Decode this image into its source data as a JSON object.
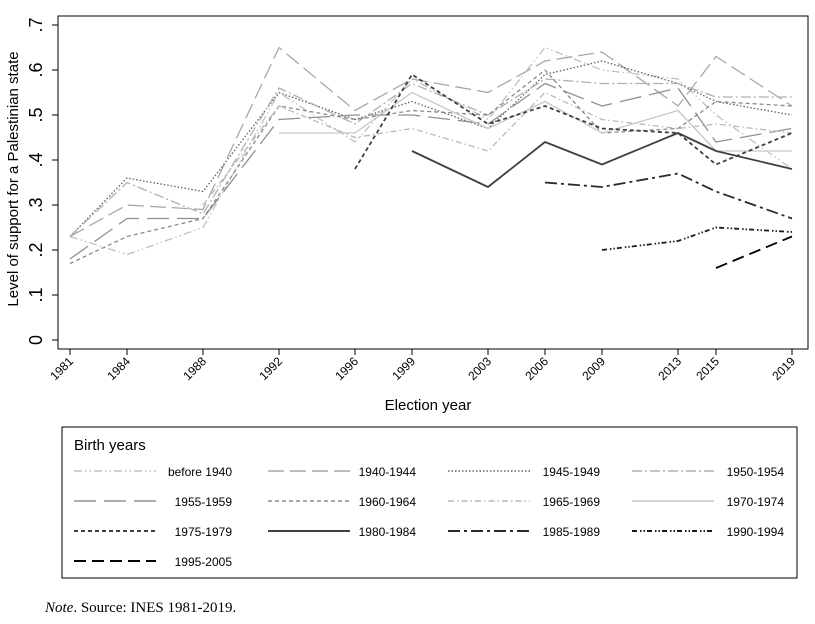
{
  "chart_data": {
    "type": "line",
    "ylabel": "Level of support for a Palestinian state",
    "xlabel": "Election year",
    "ylim": [
      0,
      0.7
    ],
    "y_ticks": [
      0,
      0.1,
      0.2,
      0.3,
      0.4,
      0.5,
      0.6,
      0.7
    ],
    "y_tick_labels": [
      "0",
      ".1",
      ".2",
      ".3",
      ".4",
      ".5",
      ".6",
      ".7"
    ],
    "x": [
      1981,
      1984,
      1988,
      1992,
      1996,
      1999,
      2003,
      2006,
      2009,
      2013,
      2015,
      2019
    ],
    "x_tick_labels": [
      "1981",
      "1984",
      "1988",
      "1992",
      "1996",
      "1999",
      "2003",
      "2006",
      "2009",
      "2013",
      "2015",
      "2019"
    ],
    "legend_title": "Birth years",
    "legend_position": "bottom",
    "series": [
      {
        "name": "before 1940",
        "color": "#c0c0c0",
        "dash": "dashdotdot",
        "values": [
          0.23,
          0.19,
          0.25,
          0.55,
          0.44,
          0.58,
          0.49,
          0.65,
          0.6,
          0.58,
          0.5,
          0.38
        ]
      },
      {
        "name": "1940-1944",
        "color": "#a8a8a8",
        "dash": "longdash",
        "values": [
          0.23,
          0.3,
          0.29,
          0.65,
          0.51,
          0.58,
          0.55,
          0.62,
          0.64,
          0.52,
          0.63,
          0.52
        ]
      },
      {
        "name": "1945-1949",
        "color": "#606060",
        "dash": "dot",
        "values": [
          0.23,
          0.36,
          0.33,
          0.55,
          0.49,
          0.53,
          0.47,
          0.59,
          0.62,
          0.57,
          0.53,
          0.5
        ]
      },
      {
        "name": "1950-1954",
        "color": "#b0b0b0",
        "dash": "dashdot",
        "values": [
          0.23,
          0.35,
          0.28,
          0.56,
          0.48,
          0.57,
          0.5,
          0.58,
          0.57,
          0.57,
          0.54,
          0.54
        ]
      },
      {
        "name": "1955-1959",
        "color": "#909090",
        "dash": "longdash2",
        "values": [
          0.18,
          0.27,
          0.27,
          0.49,
          0.5,
          0.5,
          0.48,
          0.57,
          0.52,
          0.56,
          0.44,
          0.47
        ]
      },
      {
        "name": "1960-1964",
        "color": "#8a8a8a",
        "dash": "shortdash",
        "values": [
          0.17,
          0.23,
          0.27,
          0.52,
          0.49,
          0.51,
          0.5,
          0.6,
          0.46,
          0.47,
          0.53,
          0.52
        ]
      },
      {
        "name": "1965-1969",
        "color": "#b8b8b8",
        "dash": "dashdot2",
        "values": [
          null,
          null,
          0.3,
          0.52,
          0.45,
          0.47,
          0.42,
          0.55,
          0.49,
          0.47,
          0.48,
          0.46
        ]
      },
      {
        "name": "1970-1974",
        "color": "#c8c8c8",
        "dash": "solid",
        "values": [
          null,
          null,
          null,
          0.46,
          0.46,
          0.55,
          0.47,
          0.53,
          0.46,
          0.51,
          0.42,
          0.42
        ]
      },
      {
        "name": "1975-1979",
        "color": "#404040",
        "dash": "shortdash",
        "values": [
          null,
          null,
          null,
          null,
          0.38,
          0.59,
          0.48,
          0.52,
          0.47,
          0.46,
          0.39,
          0.46
        ]
      },
      {
        "name": "1980-1984",
        "color": "#404040",
        "dash": "solid",
        "values": [
          null,
          null,
          null,
          null,
          null,
          0.42,
          0.34,
          0.44,
          0.39,
          0.46,
          0.42,
          0.38
        ]
      },
      {
        "name": "1985-1989",
        "color": "#2a2a2a",
        "dash": "dashdot3",
        "values": [
          null,
          null,
          null,
          null,
          null,
          null,
          null,
          0.35,
          0.34,
          0.37,
          0.33,
          0.27
        ]
      },
      {
        "name": "1990-1994",
        "color": "#1a1a1a",
        "dash": "dashdotdot2",
        "values": [
          null,
          null,
          null,
          null,
          null,
          null,
          null,
          null,
          0.2,
          0.22,
          0.25,
          0.24
        ]
      },
      {
        "name": "1995-2005",
        "color": "#000000",
        "dash": "dash",
        "values": [
          null,
          null,
          null,
          null,
          null,
          null,
          null,
          null,
          null,
          null,
          0.16,
          0.23
        ]
      }
    ]
  },
  "note": {
    "label": "Note",
    "text": ". Source: INES 1981-2019."
  }
}
